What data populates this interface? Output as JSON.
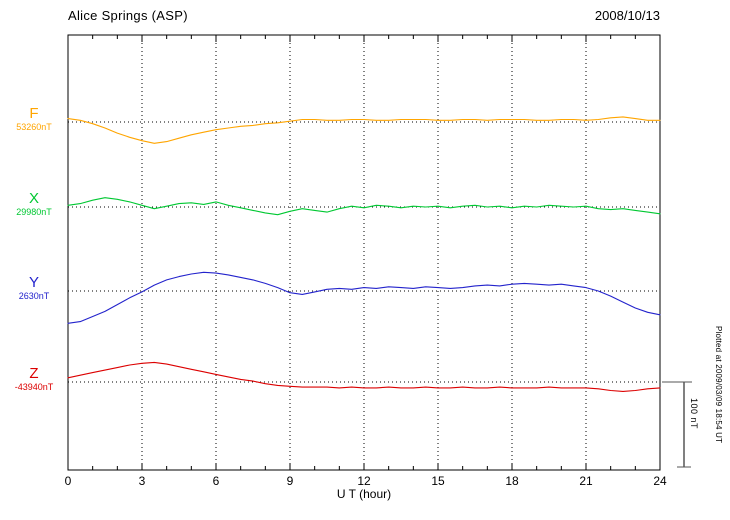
{
  "header": {
    "title": "Alice Springs (ASP)",
    "date": "2008/10/13"
  },
  "axis": {
    "xlabel": "U T (hour)",
    "ticks": [
      0,
      3,
      6,
      9,
      12,
      15,
      18,
      21,
      24
    ],
    "gridline_hours": [
      3,
      6,
      9,
      12,
      15,
      18,
      21
    ],
    "xmin": 0,
    "xmax": 24
  },
  "scalebar": {
    "label": "100 nT",
    "nT": 100
  },
  "note": "Plotted at 2009/03/09 18:54 UT",
  "chart_data": {
    "type": "line",
    "title": "Alice Springs (ASP) magnetogram",
    "date": "2008/10/13",
    "xlabel": "U T (hour)",
    "x_range_hours": [
      0,
      24
    ],
    "x_step_hours": 0.5,
    "scale_bar_nT": 100,
    "values_are_deviation_from_base_nT": true,
    "grid": "dotted vertical every 3 h; dotted horizontal baseline per component",
    "legend_position": "left margin, one colored label per trace",
    "series": [
      {
        "name": "F",
        "base_label": "53260nT",
        "base_value_nT": 53260,
        "color": "#FFA500",
        "values": [
          4,
          2,
          -2,
          -7,
          -13,
          -18,
          -22,
          -25,
          -23,
          -19,
          -15,
          -12,
          -9,
          -7,
          -5,
          -4,
          -2,
          -1,
          1,
          3,
          3,
          2,
          2,
          3,
          3,
          2,
          2,
          3,
          3,
          3,
          2,
          2,
          3,
          3,
          2,
          3,
          3,
          3,
          2,
          2,
          3,
          3,
          2,
          3,
          5,
          6,
          4,
          2,
          2
        ]
      },
      {
        "name": "X",
        "base_label": "29980nT",
        "base_value_nT": 29980,
        "color": "#00C832",
        "values": [
          2,
          4,
          8,
          11,
          9,
          6,
          2,
          -2,
          1,
          4,
          5,
          3,
          6,
          2,
          -1,
          -4,
          -7,
          -9,
          -5,
          -2,
          -4,
          -6,
          -2,
          1,
          -1,
          2,
          1,
          -1,
          1,
          0,
          1,
          -1,
          1,
          2,
          0,
          1,
          -1,
          1,
          0,
          2,
          1,
          0,
          1,
          -2,
          -3,
          -2,
          -4,
          -6,
          -8
        ]
      },
      {
        "name": "Y",
        "base_label": "2630nT",
        "base_value_nT": 2630,
        "color": "#2323CC",
        "values": [
          -38,
          -36,
          -30,
          -24,
          -16,
          -8,
          -1,
          7,
          13,
          17,
          20,
          22,
          21,
          19,
          16,
          13,
          9,
          4,
          -2,
          -4,
          -1,
          2,
          3,
          2,
          4,
          3,
          5,
          4,
          3,
          5,
          4,
          3,
          4,
          6,
          7,
          6,
          8,
          9,
          8,
          7,
          8,
          6,
          4,
          0,
          -6,
          -13,
          -20,
          -25,
          -28
        ]
      },
      {
        "name": "Z",
        "base_label": "-43940nT",
        "base_value_nT": -43940,
        "color": "#DC0000",
        "values": [
          5,
          8,
          11,
          14,
          17,
          20,
          22,
          23,
          21,
          18,
          15,
          12,
          9,
          6,
          3,
          1,
          -2,
          -4,
          -5,
          -6,
          -6,
          -6,
          -7,
          -6,
          -7,
          -7,
          -6,
          -7,
          -7,
          -6,
          -7,
          -7,
          -6,
          -7,
          -7,
          -6,
          -7,
          -7,
          -7,
          -6,
          -7,
          -7,
          -7,
          -8,
          -10,
          -11,
          -10,
          -8,
          -7
        ]
      }
    ]
  }
}
